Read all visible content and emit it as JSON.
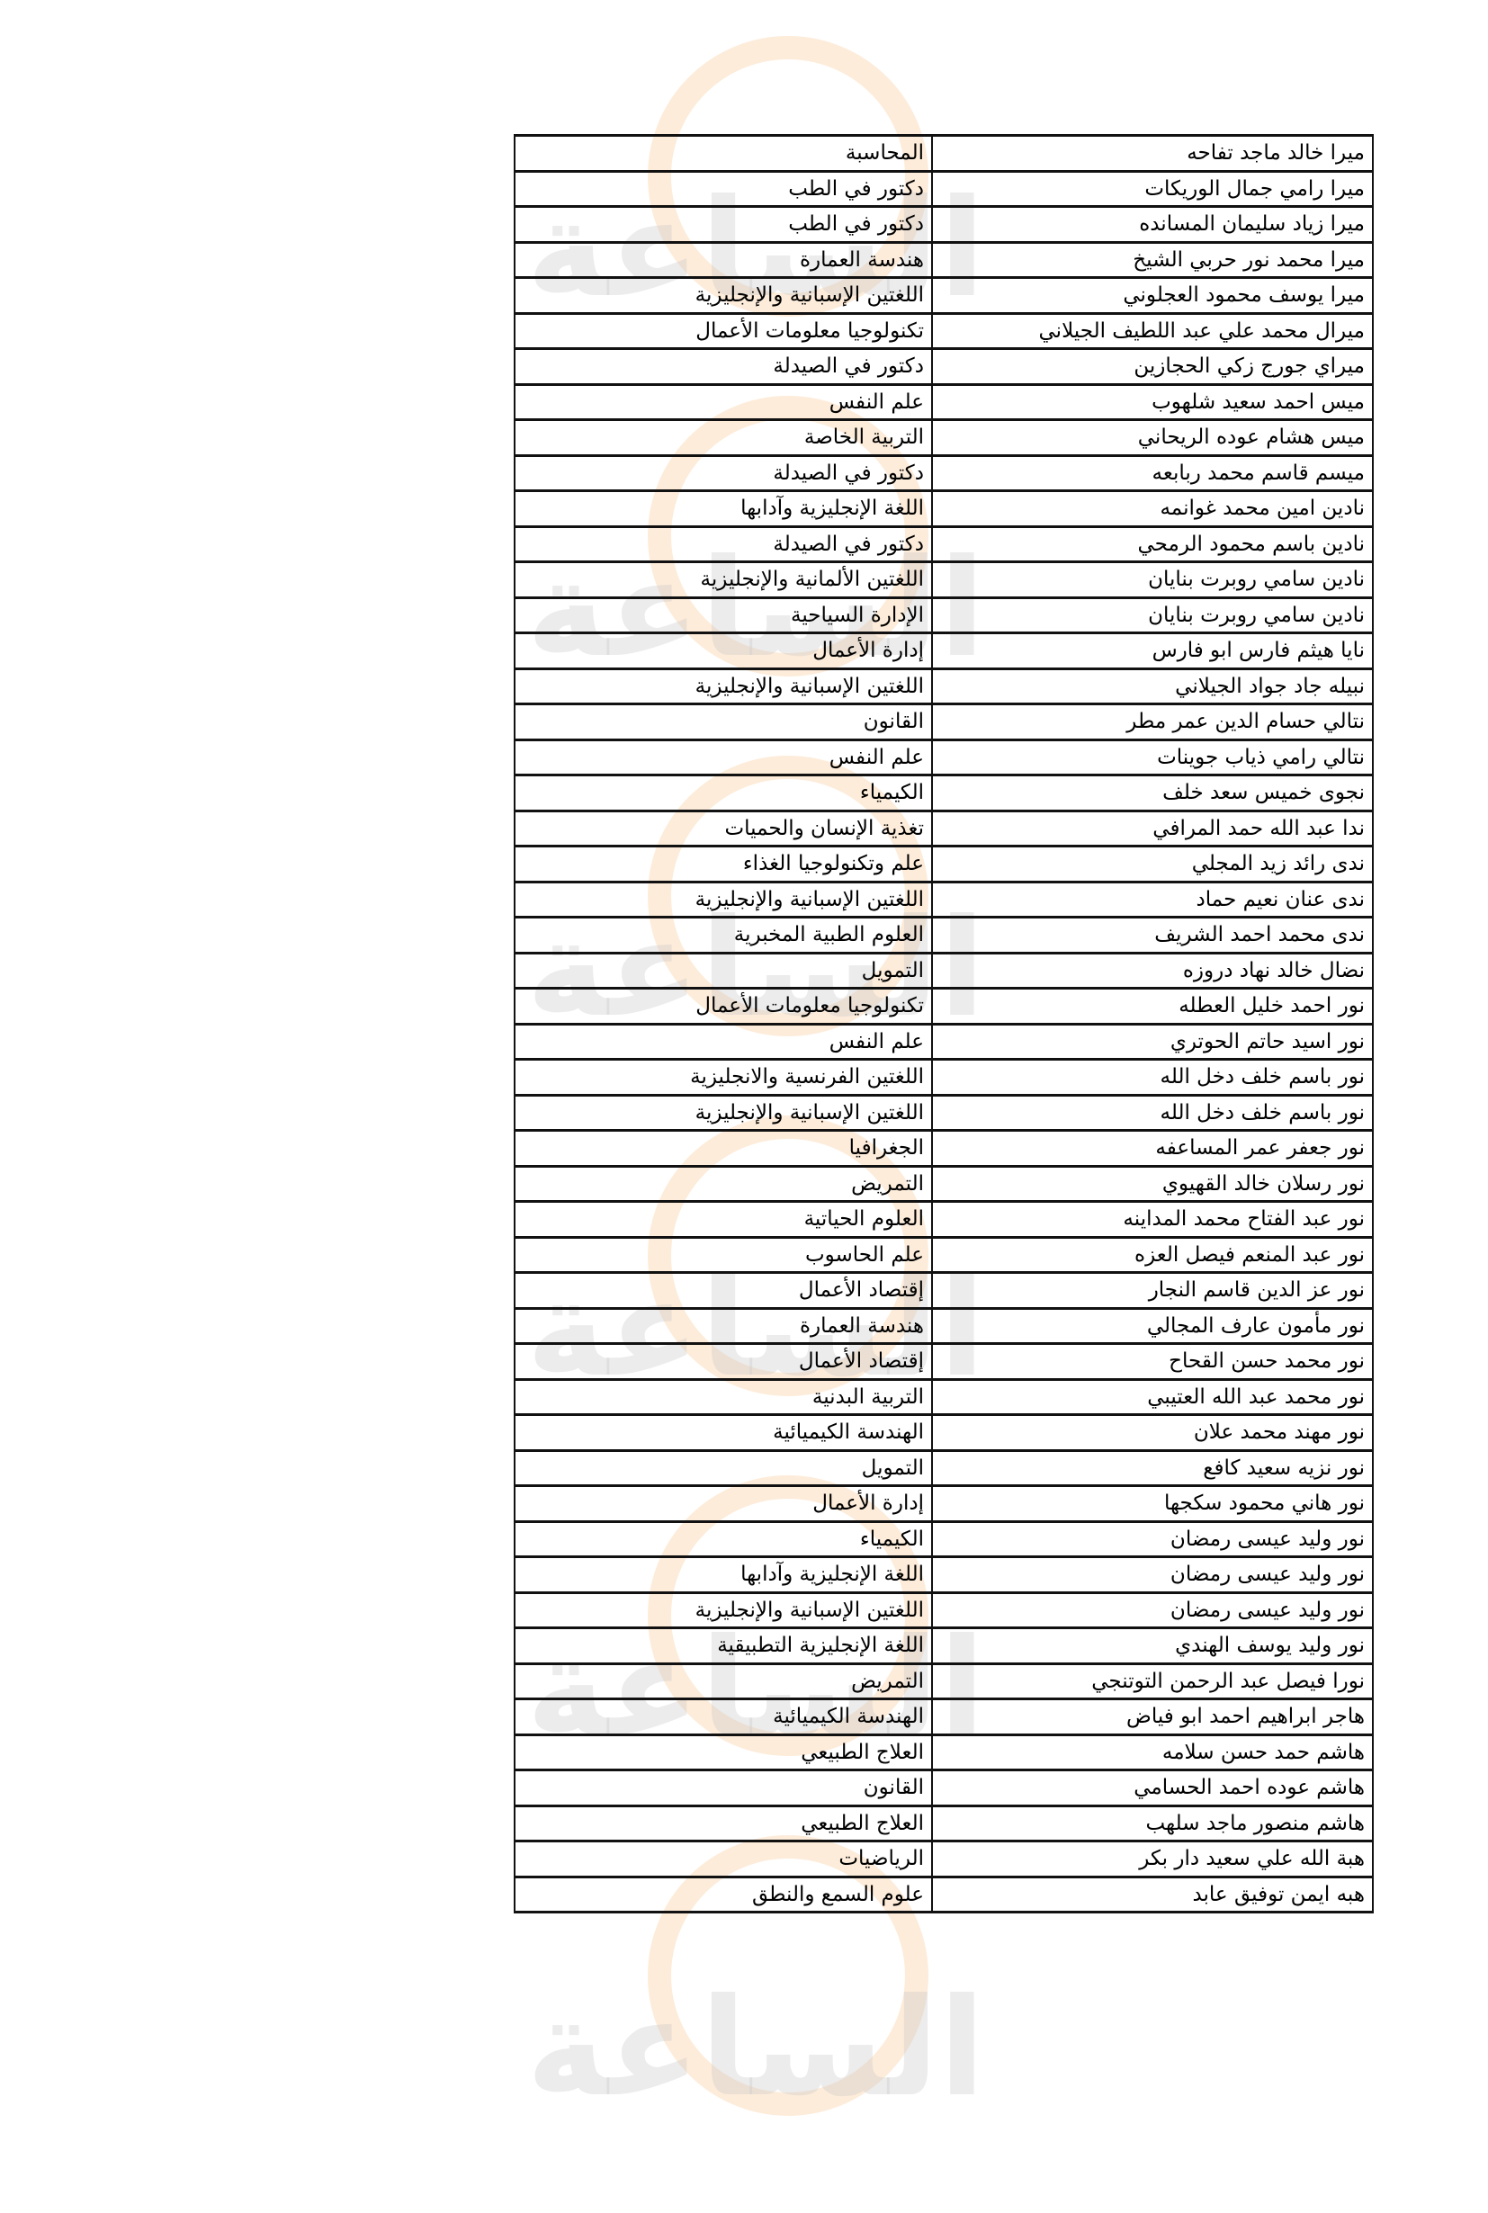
{
  "watermark": "مدار الساعة الإخبارية",
  "rows": [
    [
      "ميرا خالد ماجد تفاحه",
      "المحاسبة"
    ],
    [
      "ميرا رامي جمال الوريكات",
      "دكتور في الطب"
    ],
    [
      "ميرا زياد سليمان المسانده",
      "دكتور في الطب"
    ],
    [
      "ميرا محمد نور حربي الشيخ",
      "هندسة العمارة"
    ],
    [
      "ميرا يوسف محمود العجلوني",
      "اللغتين الإسبانية والإنجليزية"
    ],
    [
      "ميرال محمد علي عبد اللطيف الجيلاني",
      "تكنولوجيا معلومات الأعمال"
    ],
    [
      "ميراي جورج زكي الحجازين",
      "دكتور في الصيدلة"
    ],
    [
      "ميس احمد سعيد شلهوب",
      "علم النفس"
    ],
    [
      "ميس هشام عوده الريحاني",
      "التربية الخاصة"
    ],
    [
      "ميسم قاسم محمد ربابعه",
      "دكتور في الصيدلة"
    ],
    [
      "نادين امين محمد غوانمه",
      "اللغة الإنجليزية وآدابها"
    ],
    [
      "نادين باسم محمود الرمحي",
      "دكتور في الصيدلة"
    ],
    [
      "نادين سامي روبرت بنايان",
      "اللغتين الألمانية والإنجليزية"
    ],
    [
      "نادين سامي روبرت بنايان",
      "الإدارة السياحية"
    ],
    [
      "نايا هيثم فارس ابو فارس",
      "إدارة الأعمال"
    ],
    [
      "نبيله جاد جواد الجيلاني",
      "اللغتين الإسبانية والإنجليزية"
    ],
    [
      "نتالي حسام الدين عمر مطر",
      "القانون"
    ],
    [
      "نتالي رامي ذياب جوينات",
      "علم النفس"
    ],
    [
      "نجوى خميس سعد خلف",
      "الكيمياء"
    ],
    [
      "ندا عبد الله حمد المرافي",
      "تغذية الإنسان والحميات"
    ],
    [
      "ندى رائد زيد المجلي",
      "علم وتكنولوجيا الغذاء"
    ],
    [
      "ندى عنان نعيم حماد",
      "اللغتين الإسبانية والإنجليزية"
    ],
    [
      "ندى محمد احمد الشريف",
      "العلوم الطبية المخبرية"
    ],
    [
      "نضال خالد نهاد دروزه",
      "التمويل"
    ],
    [
      "نور احمد خليل العطله",
      "تكنولوجيا معلومات الأعمال"
    ],
    [
      "نور اسيد حاتم الحوتري",
      "علم النفس"
    ],
    [
      "نور باسم خلف دخل الله",
      "اللغتين الفرنسية والانجليزية"
    ],
    [
      "نور باسم خلف دخل الله",
      "اللغتين الإسبانية والإنجليزية"
    ],
    [
      "نور جعفر عمر المساعفه",
      "الجغرافيا"
    ],
    [
      "نور رسلان خالد القهيوي",
      "التمريض"
    ],
    [
      "نور عبد الفتاح محمد المداينه",
      "العلوم الحياتية"
    ],
    [
      "نور عبد المنعم فيصل العزه",
      "علم الحاسوب"
    ],
    [
      "نور عز الدين قاسم النجار",
      "إقتصاد الأعمال"
    ],
    [
      "نور مأمون عارف المجالي",
      "هندسة العمارة"
    ],
    [
      "نور محمد حسن القحاح",
      "إقتصاد الأعمال"
    ],
    [
      "نور محمد عبد الله العتيبي",
      "التربية البدنية"
    ],
    [
      "نور مهند محمد علان",
      "الهندسة الكيميائية"
    ],
    [
      "نور نزيه سعيد كافع",
      "التمويل"
    ],
    [
      "نور هاني محمود سكجها",
      "إدارة الأعمال"
    ],
    [
      "نور وليد عيسى رمضان",
      "الكيمياء"
    ],
    [
      "نور وليد عيسى رمضان",
      "اللغة الإنجليزية وآدابها"
    ],
    [
      "نور وليد عيسى رمضان",
      "اللغتين الإسبانية والإنجليزية"
    ],
    [
      "نور وليد يوسف الهندي",
      "اللغة الإنجليزية التطبيقية"
    ],
    [
      "نورا فيصل عبد الرحمن التوتنجي",
      "التمريض"
    ],
    [
      "هاجر ابراهيم احمد ابو فياض",
      "الهندسة الكيميائية"
    ],
    [
      "هاشم حمد حسن سلامه",
      "العلاج الطبيعي"
    ],
    [
      "هاشم عوده احمد الحسامي",
      "القانون"
    ],
    [
      "هاشم منصور ماجد سلهب",
      "العلاج الطبيعي"
    ],
    [
      "هبة الله علي سعيد دار بكر",
      "الرياضيات"
    ],
    [
      "هبه ايمن توفيق عابد",
      "علوم السمع والنطق"
    ]
  ]
}
